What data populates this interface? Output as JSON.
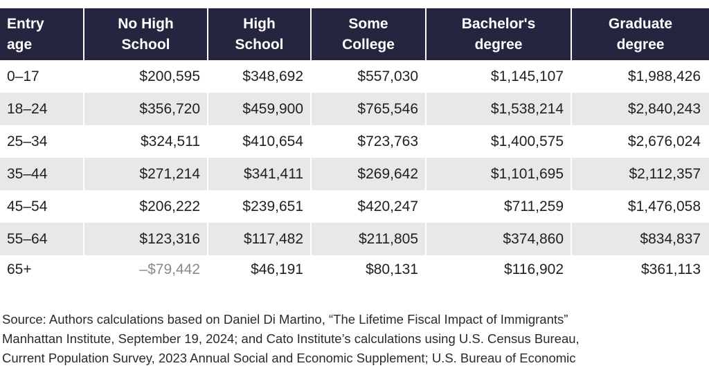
{
  "chart_data": {
    "type": "table",
    "columns": [
      "Entry age",
      "No High School",
      "High School",
      "Some College",
      "Bachelor's degree",
      "Graduate degree"
    ],
    "rows": [
      [
        "0–17",
        "$200,595",
        "$348,692",
        "$557,030",
        "$1,145,107",
        "$1,988,426"
      ],
      [
        "18–24",
        "$356,720",
        "$459,900",
        "$765,546",
        "$1,538,214",
        "$2,840,243"
      ],
      [
        "25–34",
        "$324,511",
        "$410,654",
        "$723,763",
        "$1,400,575",
        "$2,676,024"
      ],
      [
        "35–44",
        "$271,214",
        "$341,411",
        "$269,642",
        "$1,101,695",
        "$2,112,357"
      ],
      [
        "45–54",
        "$206,222",
        "$239,651",
        "$420,247",
        "$711,259",
        "$1,476,058"
      ],
      [
        "55–64",
        "$123,316",
        "$117,482",
        "$211,805",
        "$374,860",
        "$834,837"
      ],
      [
        "65+",
        "–$79,442",
        "$46,191",
        "$80,131",
        "$116,902",
        "$361,113"
      ]
    ]
  },
  "header": {
    "col0": [
      "Entry",
      "age"
    ],
    "col1": [
      "No High",
      "School"
    ],
    "col2": [
      "High",
      "School"
    ],
    "col3": [
      "Some",
      "College"
    ],
    "col4": [
      "Bachelor's",
      "degree"
    ],
    "col5": [
      "Graduate",
      "degree"
    ]
  },
  "source": {
    "line1": "Source: Authors calculations based on Daniel Di Martino, “The Lifetime Fiscal Impact of Immigrants”",
    "line2": "Manhattan Institute, September 19, 2024; and Cato Institute’s calculations using U.S. Census Bureau,",
    "line3": "Current Population Survey, 2023 Annual Social and Economic Supplement; U.S. Bureau of Economic"
  },
  "colors": {
    "header_bg": "#262540",
    "header_text": "#ffffff",
    "row_shade": "#e8e8e8",
    "negative_text": "#8a8a8a"
  }
}
